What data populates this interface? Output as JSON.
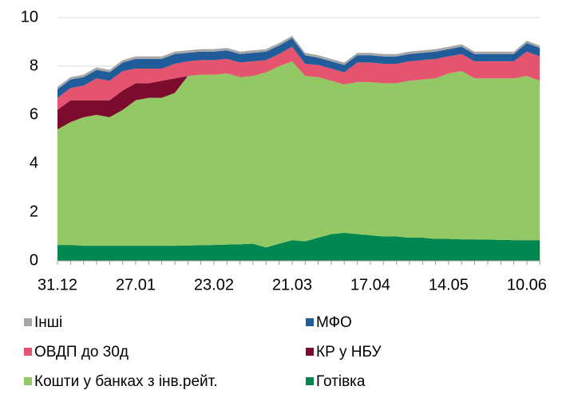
{
  "chart_data": {
    "type": "stacked-area",
    "categories": [
      "31.12",
      null,
      null,
      null,
      null,
      null,
      "27.01",
      null,
      null,
      null,
      null,
      null,
      "23.02",
      null,
      null,
      null,
      null,
      null,
      "21.03",
      null,
      null,
      null,
      null,
      null,
      "17.04",
      null,
      null,
      null,
      null,
      null,
      "14.05",
      null,
      null,
      null,
      null,
      null,
      "10.06",
      null
    ],
    "ylim": [
      0,
      10
    ],
    "yticks": [
      0,
      2,
      4,
      6,
      8,
      10
    ],
    "grid": true,
    "series": [
      {
        "name": "Готівка",
        "color": "#00874f",
        "values": [
          0.65,
          0.65,
          0.62,
          0.62,
          0.62,
          0.62,
          0.62,
          0.62,
          0.62,
          0.62,
          0.63,
          0.64,
          0.65,
          0.67,
          0.68,
          0.7,
          0.55,
          0.7,
          0.85,
          0.8,
          0.95,
          1.1,
          1.15,
          1.1,
          1.05,
          1.0,
          1.0,
          0.95,
          0.95,
          0.9,
          0.9,
          0.88,
          0.88,
          0.87,
          0.86,
          0.85,
          0.85,
          0.85
        ]
      },
      {
        "name": "Кошти у банках з інв.рейт.",
        "color": "#92c964",
        "values": [
          4.75,
          5.05,
          5.28,
          5.38,
          5.28,
          5.58,
          5.98,
          6.08,
          6.08,
          6.28,
          6.97,
          7.01,
          7.0,
          7.03,
          6.87,
          6.9,
          7.2,
          7.3,
          7.35,
          6.8,
          6.6,
          6.3,
          6.1,
          6.25,
          6.3,
          6.3,
          6.3,
          6.45,
          6.5,
          6.6,
          6.8,
          6.92,
          6.62,
          6.63,
          6.64,
          6.65,
          6.75,
          6.55
        ]
      },
      {
        "name": "КР у НБУ",
        "color": "#7b0c2e",
        "values": [
          0.8,
          0.9,
          0.7,
          0.6,
          0.7,
          0.8,
          0.7,
          0.6,
          0.7,
          0.6,
          0,
          0,
          0,
          0,
          0,
          0,
          0,
          0,
          0,
          0,
          0,
          0,
          0,
          0,
          0,
          0,
          0,
          0,
          0,
          0,
          0,
          0,
          0,
          0,
          0,
          0,
          0,
          0
        ]
      },
      {
        "name": "ОВДП до 30д",
        "color": "#e4546f",
        "values": [
          0.5,
          0.5,
          0.6,
          0.9,
          0.8,
          0.8,
          0.6,
          0.6,
          0.5,
          0.6,
          0.6,
          0.6,
          0.6,
          0.6,
          0.6,
          0.6,
          0.5,
          0.5,
          0.6,
          0.5,
          0.5,
          0.5,
          0.5,
          0.8,
          0.8,
          0.8,
          0.8,
          0.8,
          0.8,
          0.8,
          0.7,
          0.7,
          0.7,
          0.7,
          0.7,
          0.7,
          1.0,
          1.0
        ]
      },
      {
        "name": "МФО",
        "color": "#1f5c99",
        "values": [
          0.35,
          0.35,
          0.35,
          0.35,
          0.35,
          0.35,
          0.4,
          0.4,
          0.4,
          0.4,
          0.35,
          0.35,
          0.35,
          0.35,
          0.35,
          0.35,
          0.35,
          0.35,
          0.35,
          0.35,
          0.3,
          0.3,
          0.3,
          0.3,
          0.3,
          0.3,
          0.3,
          0.3,
          0.3,
          0.3,
          0.3,
          0.3,
          0.3,
          0.3,
          0.3,
          0.3,
          0.35,
          0.35
        ]
      },
      {
        "name": "Інші",
        "color": "#a6a6a6",
        "values": [
          0.1,
          0.1,
          0.1,
          0.1,
          0.1,
          0.1,
          0.1,
          0.1,
          0.1,
          0.1,
          0.1,
          0.1,
          0.1,
          0.1,
          0.1,
          0.1,
          0.1,
          0.1,
          0.1,
          0.1,
          0.1,
          0.1,
          0.1,
          0.1,
          0.1,
          0.1,
          0.1,
          0.1,
          0.1,
          0.1,
          0.1,
          0.1,
          0.1,
          0.1,
          0.1,
          0.1,
          0.1,
          0.1
        ]
      }
    ]
  }
}
